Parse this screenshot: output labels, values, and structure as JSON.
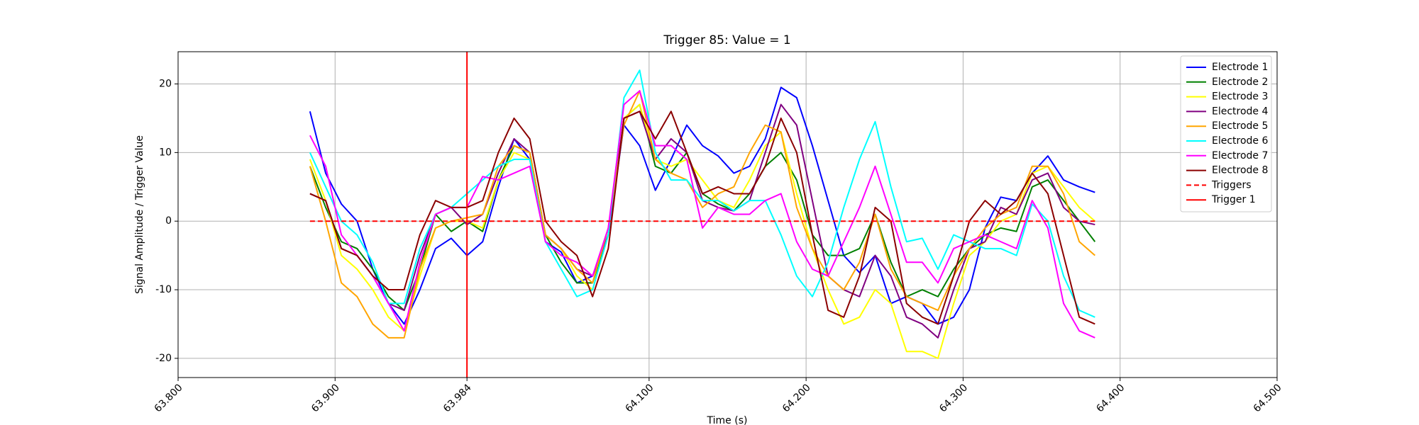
{
  "chart_data": {
    "type": "line",
    "title": "Trigger 85: Value = 1",
    "xlabel": "Time (s)",
    "ylabel": "Signal Amplitude / Trigger Value",
    "xlim": [
      63.8,
      64.5
    ],
    "ylim": [
      -22.8,
      24.7
    ],
    "xticks": [
      {
        "value": 63.8,
        "label": "63.800"
      },
      {
        "value": 63.9,
        "label": "63.900"
      },
      63.984,
      {
        "value": 64.1,
        "label": "64.100"
      },
      {
        "value": 64.2,
        "label": "64.200"
      },
      {
        "value": 64.3,
        "label": "64.300"
      },
      {
        "value": 64.4,
        "label": "64.400"
      },
      {
        "value": 64.5,
        "label": "64.500"
      }
    ],
    "yticks": [
      -20,
      -10,
      0,
      10,
      20
    ],
    "grid": true,
    "legend": "upper right",
    "x": [
      63.884,
      63.894,
      63.904,
      63.914,
      63.924,
      63.934,
      63.944,
      63.954,
      63.964,
      63.974,
      63.984,
      63.994,
      64.004,
      64.014,
      64.024,
      64.034,
      64.044,
      64.054,
      64.064,
      64.074,
      64.084,
      64.094,
      64.104,
      64.114,
      64.124,
      64.134,
      64.144,
      64.154,
      64.164,
      64.174,
      64.184,
      64.194,
      64.204,
      64.214,
      64.224,
      64.234,
      64.244,
      64.254,
      64.264,
      64.274,
      64.284,
      64.294,
      64.304,
      64.314,
      64.324,
      64.334,
      64.344,
      64.354,
      64.364,
      64.374,
      64.384
    ],
    "series": [
      {
        "name": "Electrode 1",
        "color": "#0000ff",
        "values": [
          16,
          7,
          2.5,
          0,
          -7,
          -12,
          -15,
          -10,
          -4,
          -2.5,
          -5,
          -3,
          5,
          12,
          9,
          -3,
          -4.5,
          -9,
          -8,
          -2,
          14,
          11,
          4.5,
          9,
          14,
          11,
          9.5,
          7,
          8,
          12,
          19.5,
          18,
          11,
          3,
          -5,
          -7.5,
          -5,
          -12,
          -11,
          -12,
          -15,
          -14,
          -10,
          -1,
          3.5,
          3,
          7,
          9.5,
          6,
          5,
          4.2
        ]
      },
      {
        "name": "Electrode 2",
        "color": "#008000",
        "values": [
          8,
          2,
          -3,
          -4,
          -7,
          -11,
          -13,
          -7,
          1,
          -1.5,
          0,
          -1.5,
          6,
          11,
          10,
          -2,
          -6,
          -9,
          -9,
          -2,
          15,
          17,
          8,
          7,
          10,
          4,
          2.5,
          1.5,
          4,
          8,
          10,
          6,
          -2,
          -5,
          -5,
          -4,
          1,
          -6,
          -11,
          -10,
          -11,
          -7,
          -4,
          -2,
          -1,
          -1.5,
          5,
          6,
          3,
          0,
          -3
        ]
      },
      {
        "name": "Electrode 3",
        "color": "#ffff00",
        "values": [
          9,
          3,
          -5,
          -7,
          -10,
          -14,
          -16,
          -8,
          -1,
          0,
          0,
          -1,
          6,
          10,
          9,
          -2,
          -4,
          -8,
          -10,
          -2,
          15,
          17,
          9,
          8,
          9,
          6,
          3,
          2,
          6,
          11,
          13,
          4,
          -4,
          -10,
          -15,
          -14,
          -10,
          -12,
          -19,
          -19,
          -20,
          -12,
          -5,
          -3,
          0,
          1,
          7,
          8,
          5,
          2,
          0
        ]
      },
      {
        "name": "Electrode 4",
        "color": "#800080",
        "values": [
          4,
          3,
          -4,
          -5,
          -8,
          -12,
          -13,
          -5,
          1,
          2,
          -0.5,
          1,
          7,
          12,
          10,
          -2,
          -4,
          -7,
          -8,
          -2,
          15,
          16,
          9,
          12,
          10,
          3,
          2,
          1.5,
          3,
          10,
          17,
          14,
          3,
          -8,
          -10,
          -11,
          -5,
          -8,
          -14,
          -15,
          -17,
          -10,
          -4,
          -3,
          2,
          1,
          6,
          7,
          2,
          0,
          -0.5
        ]
      },
      {
        "name": "Electrode 5",
        "color": "#ffa500",
        "values": [
          8,
          0,
          -9,
          -11,
          -15,
          -17,
          -17,
          -7,
          -1,
          0,
          0.5,
          1,
          8,
          11,
          10,
          -2,
          -4,
          -7,
          -9,
          -1,
          14,
          19,
          9,
          7,
          6,
          2,
          4,
          5,
          10,
          14,
          13,
          2,
          -4,
          -8,
          -10,
          -6,
          1,
          -7,
          -11,
          -12,
          -13,
          -8,
          -4,
          -1,
          1,
          2,
          8,
          8,
          4,
          -3,
          -5
        ]
      },
      {
        "name": "Electrode 6",
        "color": "#00ffff",
        "values": [
          10,
          5,
          0,
          -2,
          -6,
          -12,
          -12,
          -4,
          1,
          2,
          4,
          6,
          8,
          9,
          9,
          -3,
          -7,
          -11,
          -10,
          -2,
          18,
          22,
          10,
          6,
          6,
          3,
          3,
          1.5,
          3,
          3,
          -2,
          -8,
          -11,
          -6,
          2,
          9,
          14.5,
          5,
          -3,
          -2.5,
          -7,
          -2,
          -3,
          -4,
          -4,
          -5,
          2.5,
          0,
          -8,
          -13,
          -14
        ]
      },
      {
        "name": "Electrode 7",
        "color": "#ff00ff",
        "values": [
          12.5,
          8,
          -2,
          -5,
          -8,
          -12,
          -16,
          -6,
          1,
          2,
          2,
          6.5,
          6,
          7,
          8,
          -3,
          -5,
          -6,
          -8,
          -1,
          17,
          19,
          11,
          11,
          9,
          -1,
          2,
          1,
          1,
          3,
          4,
          -3,
          -7,
          -8,
          -3,
          2,
          8,
          1,
          -6,
          -6,
          -9,
          -4,
          -3,
          -2,
          -3,
          -4,
          3,
          -1,
          -12,
          -16,
          -17
        ]
      },
      {
        "name": "Electrode 8",
        "color": "#8b0000",
        "values": [
          4,
          3,
          -4,
          -5,
          -8,
          -10,
          -10,
          -2,
          3,
          2,
          2,
          3,
          10,
          15,
          12,
          0,
          -3,
          -5,
          -11,
          -4,
          15,
          16,
          12,
          16,
          10,
          4,
          5,
          4,
          4,
          8,
          15,
          10,
          -2,
          -13,
          -14,
          -8,
          2,
          0,
          -12,
          -14,
          -15,
          -8,
          0,
          3,
          1,
          3,
          7,
          4,
          -5,
          -14,
          -15
        ]
      },
      {
        "name": "Triggers",
        "color": "#ff0000",
        "dash": true,
        "x": [
          63.884,
          64.384
        ],
        "values": [
          0,
          0
        ]
      }
    ],
    "vlines": [
      {
        "name": "Trigger 1",
        "x": 63.984,
        "color": "#ff0000"
      }
    ]
  }
}
